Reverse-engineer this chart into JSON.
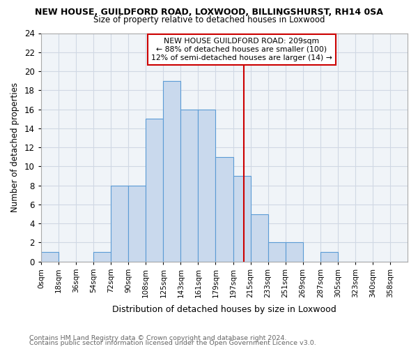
{
  "title": "NEW HOUSE, GUILDFORD ROAD, LOXWOOD, BILLINGSHURST, RH14 0SA",
  "subtitle": "Size of property relative to detached houses in Loxwood",
  "xlabel": "Distribution of detached houses by size in Loxwood",
  "ylabel": "Number of detached properties",
  "footnote1": "Contains HM Land Registry data © Crown copyright and database right 2024.",
  "footnote2": "Contains public sector information licensed under the Open Government Licence v3.0.",
  "bar_labels": [
    "0sqm",
    "18sqm",
    "36sqm",
    "54sqm",
    "72sqm",
    "90sqm",
    "108sqm",
    "125sqm",
    "143sqm",
    "161sqm",
    "179sqm",
    "197sqm",
    "215sqm",
    "233sqm",
    "251sqm",
    "269sqm",
    "287sqm",
    "305sqm",
    "323sqm",
    "340sqm",
    "358sqm"
  ],
  "bar_values": [
    1,
    0,
    0,
    1,
    8,
    8,
    15,
    19,
    16,
    16,
    11,
    9,
    5,
    2,
    2,
    0,
    1,
    0,
    0,
    0,
    0
  ],
  "bar_color": "#c9d9ed",
  "bar_edge_color": "#5b9bd5",
  "grid_color": "#d0d8e4",
  "bg_color": "#f0f4f8",
  "fig_bg_color": "#ffffff",
  "vline_color": "#cc0000",
  "annotation_text": "NEW HOUSE GUILDFORD ROAD: 209sqm\n← 88% of detached houses are smaller (100)\n12% of semi-detached houses are larger (14) →",
  "annotation_box_color": "#ffffff",
  "annotation_border_color": "#cc0000",
  "ylim": [
    0,
    24
  ],
  "yticks": [
    0,
    2,
    4,
    6,
    8,
    10,
    12,
    14,
    16,
    18,
    20,
    22,
    24
  ],
  "bin_width": 18,
  "property_sqm": 209,
  "footnote_color": "#666666"
}
